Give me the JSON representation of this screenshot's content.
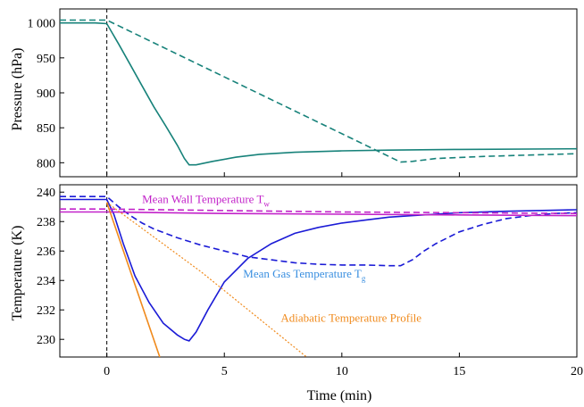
{
  "chart_data": [
    {
      "type": "line",
      "panel": "top",
      "ylabel": "Pressure (hPa)",
      "xlim": [
        -2,
        20
      ],
      "ylim": [
        780,
        1020
      ],
      "yticks": [
        800,
        850,
        900,
        950,
        1000
      ],
      "ytick_labels": [
        "800",
        "850",
        "900",
        "950",
        "1 000"
      ],
      "vline_x": 0,
      "series": [
        {
          "style": "solid",
          "color": "#17827a",
          "x": [
            -2,
            -0.5,
            0,
            0.5,
            1,
            1.5,
            2,
            2.5,
            3,
            3.3,
            3.5,
            3.8,
            4.5,
            5.5,
            6.5,
            8,
            10,
            12,
            15,
            20
          ],
          "y": [
            1000,
            1000,
            999,
            970,
            940,
            910,
            880,
            853,
            825,
            806,
            797,
            797,
            802,
            808,
            812,
            815,
            817,
            818,
            819,
            820
          ]
        },
        {
          "style": "dashed",
          "color": "#17827a",
          "x": [
            -2,
            0,
            12.5,
            13,
            14,
            16,
            18,
            20
          ],
          "y": [
            1004,
            1004,
            801,
            802,
            806,
            809,
            811,
            813
          ]
        }
      ]
    },
    {
      "type": "line",
      "panel": "bottom",
      "xlabel": "Time (min)",
      "ylabel": "Temperature (K)",
      "xlim": [
        -2,
        20
      ],
      "ylim": [
        228.8,
        240.5
      ],
      "xticks": [
        0,
        5,
        10,
        15,
        20
      ],
      "yticks": [
        230,
        232,
        234,
        236,
        238,
        240
      ],
      "vline_x": 0,
      "series": [
        {
          "style": "solid",
          "color": "#1b1bd6",
          "x": [
            -2,
            0,
            0.3,
            0.7,
            1.2,
            1.8,
            2.4,
            3,
            3.3,
            3.5,
            3.8,
            4.3,
            5,
            6,
            7,
            8,
            9,
            10,
            11,
            12,
            13,
            14,
            15,
            17,
            20
          ],
          "y": [
            239.5,
            239.5,
            238.5,
            236.5,
            234.3,
            232.5,
            231.1,
            230.3,
            230,
            229.9,
            230.5,
            232,
            233.9,
            235.5,
            236.5,
            237.2,
            237.6,
            237.9,
            238.1,
            238.3,
            238.4,
            238.5,
            238.6,
            238.7,
            238.8
          ]
        },
        {
          "style": "dashed",
          "color": "#1b1bd6",
          "x": [
            -2,
            0,
            0.5,
            1,
            1.5,
            2,
            3,
            4,
            5,
            6,
            7,
            8,
            9,
            10,
            11,
            12,
            12.5,
            13,
            13.5,
            14,
            15,
            16,
            17,
            18,
            19,
            20
          ],
          "y": [
            239.7,
            239.7,
            239.0,
            238.4,
            237.9,
            237.5,
            236.9,
            236.4,
            236,
            235.6,
            235.4,
            235.2,
            235.1,
            235.05,
            235.05,
            235.0,
            235.0,
            235.4,
            236.0,
            236.5,
            237.3,
            237.8,
            238.2,
            238.4,
            238.55,
            238.6
          ]
        },
        {
          "style": "solid",
          "color": "#c222c9",
          "x": [
            -2,
            0,
            5,
            10,
            15,
            20
          ],
          "y": [
            238.65,
            238.65,
            238.55,
            238.5,
            238.45,
            238.4
          ]
        },
        {
          "style": "dashed",
          "color": "#c222c9",
          "x": [
            -2,
            0,
            5,
            10,
            15,
            20
          ],
          "y": [
            238.85,
            238.85,
            238.75,
            238.65,
            238.6,
            238.55
          ]
        },
        {
          "style": "solid",
          "color": "#f08a1c",
          "x": [
            0,
            2.25
          ],
          "y": [
            239.3,
            228.8
          ]
        },
        {
          "style": "dotted",
          "color": "#f08a1c",
          "x": [
            0,
            4,
            8.5
          ],
          "y": [
            239.3,
            234.6,
            228.8
          ]
        }
      ],
      "annotations": [
        {
          "text": "Mean Wall Temperature T",
          "sub": "w",
          "color": "#c222c9",
          "x": 1.5,
          "y": 239.25
        },
        {
          "text": "Mean Gas Temperature T",
          "sub": "g",
          "color": "#3a8fe0",
          "x": 5.8,
          "y": 234.2
        },
        {
          "text": "Adiabatic Temperature Profile",
          "color": "#f08a1c",
          "x": 7.4,
          "y": 231.2
        }
      ]
    }
  ],
  "text": {
    "top_ylabel": "Pressure (hPa)",
    "bottom_ylabel": "Temperature (K)",
    "xlabel": "Time (min)"
  }
}
